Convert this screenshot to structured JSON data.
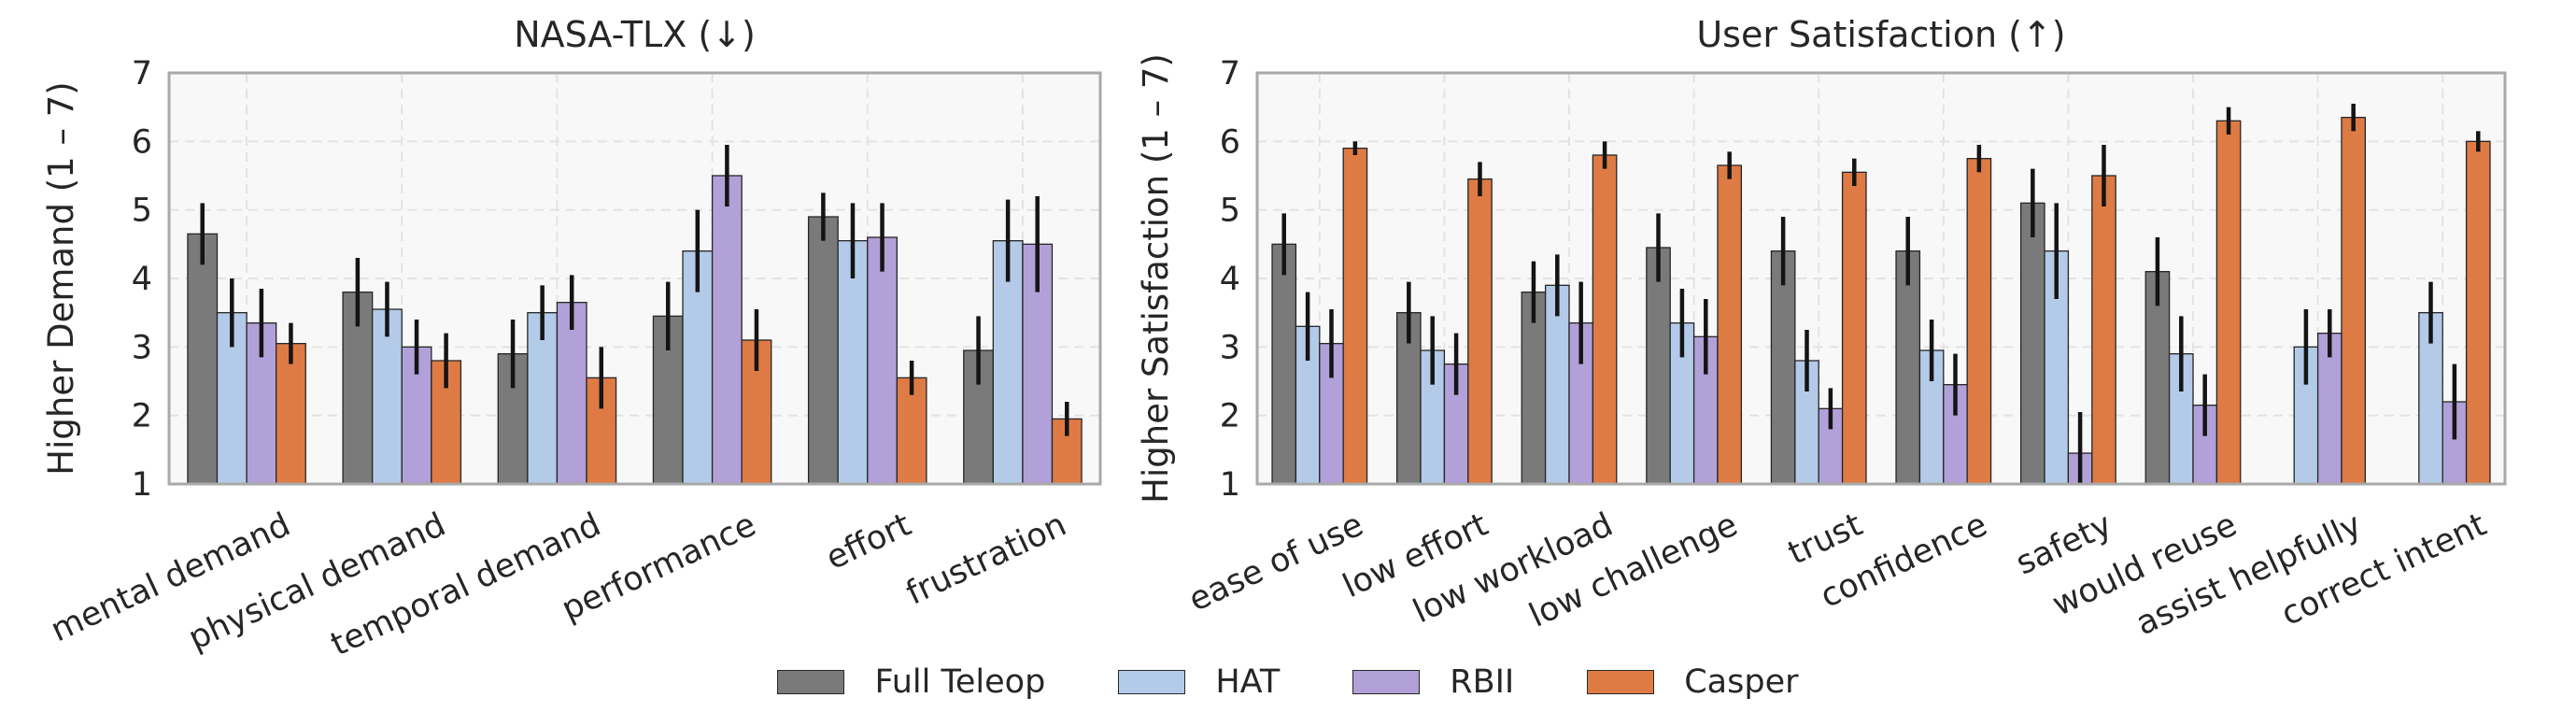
{
  "chart_data": [
    {
      "type": "bar",
      "title": "NASA-TLX (↓)",
      "ylabel": "Higher Demand (1 – 7)",
      "xlabel": "",
      "ylim": [
        1,
        7
      ],
      "yticks": [
        "1",
        "2",
        "3",
        "4",
        "5",
        "6",
        "7"
      ],
      "grid": true,
      "categories": [
        "mental demand",
        "physical demand",
        "temporal demand",
        "performance",
        "effort",
        "frustration"
      ],
      "series": [
        {
          "name": "Full Teleop",
          "values": [
            4.65,
            3.8,
            2.9,
            3.45,
            4.9,
            2.95
          ],
          "err": [
            0.45,
            0.5,
            0.5,
            0.5,
            0.35,
            0.5
          ]
        },
        {
          "name": "HAT",
          "values": [
            3.5,
            3.55,
            3.5,
            4.4,
            4.55,
            4.55
          ],
          "err": [
            0.5,
            0.4,
            0.4,
            0.6,
            0.55,
            0.6
          ]
        },
        {
          "name": "RBII",
          "values": [
            3.35,
            3.0,
            3.65,
            5.5,
            4.6,
            4.5
          ],
          "err": [
            0.5,
            0.4,
            0.4,
            0.45,
            0.5,
            0.7
          ]
        },
        {
          "name": "Casper",
          "values": [
            3.05,
            2.8,
            2.55,
            3.1,
            2.55,
            1.95
          ],
          "err": [
            0.3,
            0.4,
            0.45,
            0.45,
            0.25,
            0.25
          ]
        }
      ]
    },
    {
      "type": "bar",
      "title": "User Satisfaction (↑)",
      "ylabel": "Higher Satisfaction (1 – 7)",
      "xlabel": "",
      "ylim": [
        1,
        7
      ],
      "yticks": [
        "1",
        "2",
        "3",
        "4",
        "5",
        "6",
        "7"
      ],
      "grid": true,
      "categories": [
        "ease of use",
        "low effort",
        "low workload",
        "low challenge",
        "trust",
        "confidence",
        "safety",
        "would reuse",
        "assist helpfully",
        "correct intent"
      ],
      "series": [
        {
          "name": "Full Teleop",
          "values": [
            4.5,
            3.5,
            3.8,
            4.45,
            4.4,
            4.4,
            5.1,
            4.1,
            null,
            null
          ],
          "err": [
            0.45,
            0.45,
            0.45,
            0.5,
            0.5,
            0.5,
            0.5,
            0.5,
            null,
            null
          ]
        },
        {
          "name": "HAT",
          "values": [
            3.3,
            2.95,
            3.9,
            3.35,
            2.8,
            2.95,
            4.4,
            2.9,
            3.0,
            3.5
          ],
          "err": [
            0.5,
            0.5,
            0.45,
            0.5,
            0.45,
            0.45,
            0.7,
            0.55,
            0.55,
            0.45
          ]
        },
        {
          "name": "RBII",
          "values": [
            3.05,
            2.75,
            3.35,
            3.15,
            2.1,
            2.45,
            1.45,
            2.15,
            3.2,
            2.2
          ],
          "err": [
            0.5,
            0.45,
            0.6,
            0.55,
            0.3,
            0.45,
            0.6,
            0.45,
            0.35,
            0.55
          ]
        },
        {
          "name": "Casper",
          "values": [
            5.9,
            5.45,
            5.8,
            5.65,
            5.55,
            5.75,
            5.5,
            6.3,
            6.35,
            6.0
          ],
          "err": [
            0.1,
            0.25,
            0.2,
            0.2,
            0.2,
            0.2,
            0.45,
            0.2,
            0.2,
            0.15
          ]
        }
      ]
    }
  ],
  "legend": {
    "placement": "bottom-center",
    "items": [
      {
        "name": "Full Teleop",
        "color": "#7a7a7a"
      },
      {
        "name": "HAT",
        "color": "#b3cbe8"
      },
      {
        "name": "RBII",
        "color": "#b2a0d9"
      },
      {
        "name": "Casper",
        "color": "#de7b45"
      }
    ]
  },
  "colors": {
    "axis_border": "#a9a9a9",
    "plot_background": "#f8f8f8",
    "grid": "#e3e3e3",
    "error_bar": "#141414"
  }
}
